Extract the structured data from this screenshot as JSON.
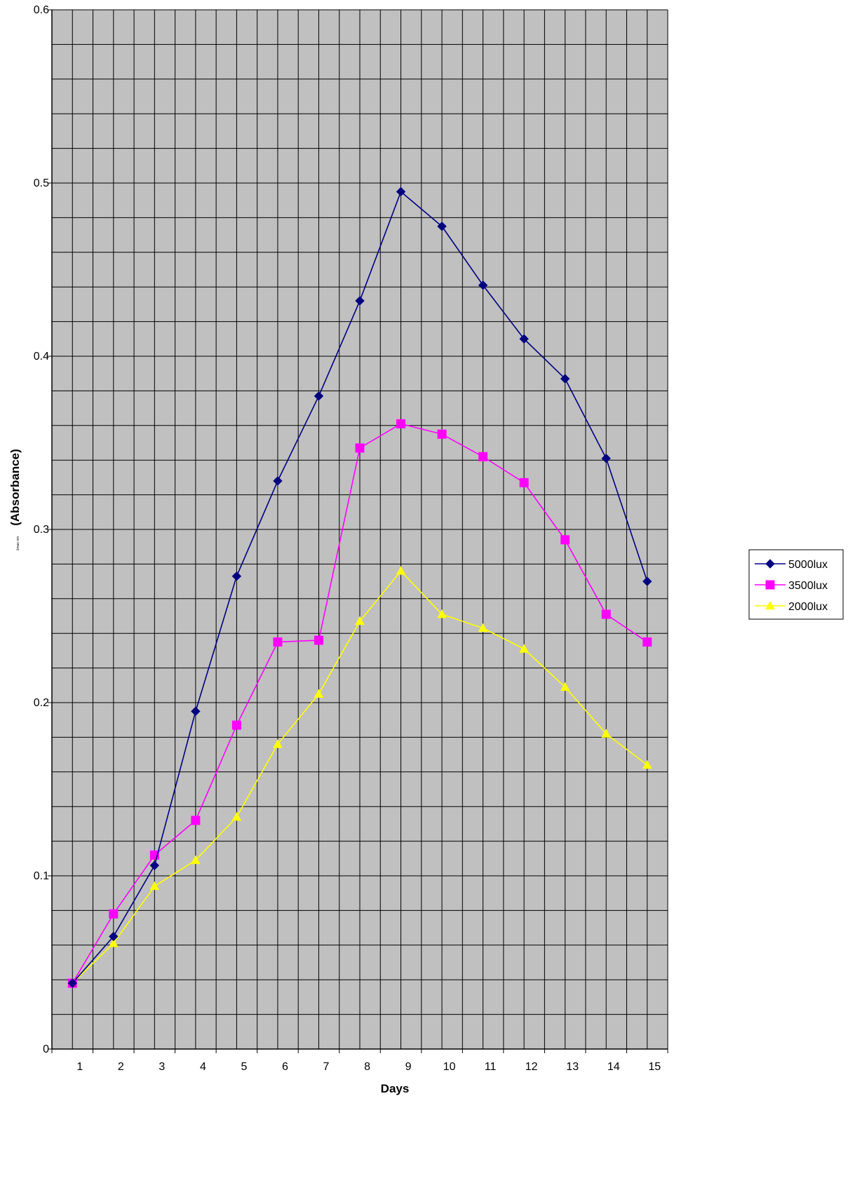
{
  "chart_data": {
    "type": "line",
    "title": "",
    "xlabel": "Days",
    "ylabel": "(Absorbance)",
    "ylabel_prefix_small": "λmax nm",
    "categories": [
      "1",
      "2",
      "3",
      "4",
      "5",
      "6",
      "7",
      "8",
      "9",
      "10",
      "11",
      "12",
      "13",
      "14",
      "15"
    ],
    "y_ticks": [
      "0",
      "0.1",
      "0.2",
      "0.3",
      "0.4",
      "0.5",
      "0.6"
    ],
    "ylim": [
      0,
      0.6
    ],
    "grid": true,
    "plot_background": "#c0c0c0",
    "legend_position": "right",
    "series": [
      {
        "name": "5000lux",
        "color": "#000080",
        "marker": "diamond",
        "values": [
          0.038,
          0.065,
          0.106,
          0.195,
          0.273,
          0.328,
          0.377,
          0.432,
          0.495,
          0.475,
          0.441,
          0.41,
          0.387,
          0.341,
          0.27
        ]
      },
      {
        "name": "3500lux",
        "color": "#ff00ff",
        "marker": "square",
        "values": [
          0.038,
          0.078,
          0.112,
          0.132,
          0.187,
          0.235,
          0.236,
          0.347,
          0.361,
          0.355,
          0.342,
          0.327,
          0.294,
          0.251,
          0.235
        ]
      },
      {
        "name": "2000lux",
        "color": "#ffff00",
        "marker": "triangle",
        "values": [
          0.038,
          0.061,
          0.094,
          0.109,
          0.134,
          0.176,
          0.205,
          0.247,
          0.276,
          0.251,
          0.243,
          0.231,
          0.209,
          0.182,
          0.164
        ]
      }
    ]
  }
}
